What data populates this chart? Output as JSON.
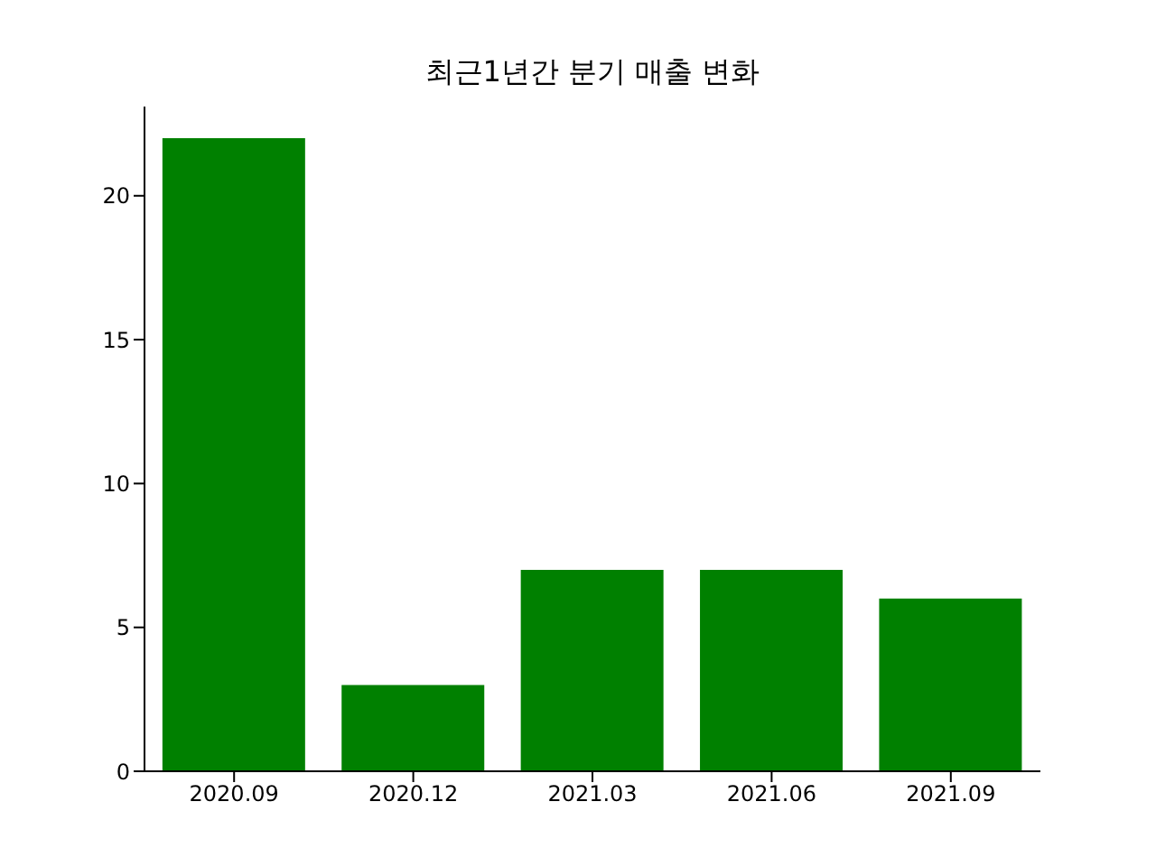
{
  "chart_data": {
    "type": "bar",
    "title": "최근1년간 분기 매출 변화",
    "categories": [
      "2020.09",
      "2020.12",
      "2021.03",
      "2021.06",
      "2021.09"
    ],
    "values": [
      22,
      3,
      7,
      7,
      6
    ],
    "color": "#008000",
    "ylim": [
      0,
      23.1
    ],
    "yticks": [
      0,
      5,
      10,
      15,
      20
    ],
    "grid": false
  }
}
